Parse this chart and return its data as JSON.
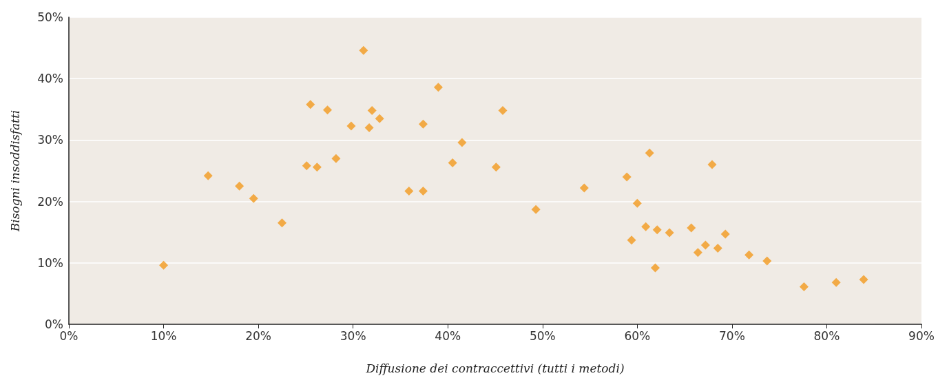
{
  "chart_data": {
    "type": "scatter",
    "xlabel": "Diffusione dei contraccettivi (tutti i metodi)",
    "ylabel": "Bisogni insoddisfatti",
    "x": [
      10.0,
      14.7,
      18.0,
      19.5,
      22.5,
      25.1,
      25.5,
      26.2,
      27.3,
      28.2,
      29.8,
      31.1,
      31.7,
      32.0,
      32.8,
      35.9,
      37.4,
      37.4,
      39.0,
      40.5,
      41.5,
      45.1,
      45.8,
      49.3,
      54.4,
      58.9,
      59.4,
      60.0,
      60.9,
      61.3,
      61.9,
      62.1,
      63.4,
      65.7,
      66.4,
      67.2,
      67.9,
      68.5,
      69.3,
      71.8,
      73.7,
      77.6,
      81.0,
      83.9
    ],
    "series": [
      {
        "color": "#f39a1e",
        "values": [
          9.6,
          24.2,
          22.5,
          20.5,
          16.5,
          25.8,
          35.8,
          25.6,
          34.9,
          27.0,
          32.3,
          44.6,
          32.0,
          34.8,
          33.5,
          21.7,
          32.6,
          21.7,
          38.6,
          26.3,
          29.6,
          25.6,
          34.8,
          18.7,
          22.2,
          24.0,
          13.7,
          19.7,
          15.9,
          27.9,
          9.2,
          15.4,
          14.9,
          15.7,
          11.7,
          12.9,
          26.0,
          12.4,
          14.7,
          11.3,
          10.3,
          6.1,
          6.8,
          7.3
        ]
      }
    ],
    "marker": "diamond",
    "grid": "y",
    "xlim": [
      0,
      90
    ],
    "xticks": [
      {
        "value": 0,
        "label": "0%"
      },
      {
        "value": 10,
        "label": "10%"
      },
      {
        "value": 20,
        "label": "20%"
      },
      {
        "value": 30,
        "label": "30%"
      },
      {
        "value": 40,
        "label": "40%"
      },
      {
        "value": 50,
        "label": "50%"
      },
      {
        "value": 60,
        "label": "60%"
      },
      {
        "value": 70,
        "label": "70%"
      },
      {
        "value": 80,
        "label": "80%"
      },
      {
        "value": 90,
        "label": "90%"
      }
    ],
    "ylim": [
      0,
      50
    ],
    "yticks": [
      {
        "value": 0,
        "label": "0%"
      },
      {
        "value": 10,
        "label": "10%"
      },
      {
        "value": 20,
        "label": "20%"
      },
      {
        "value": 30,
        "label": "30%"
      },
      {
        "value": 40,
        "label": "40%"
      },
      {
        "value": 50,
        "label": "50%"
      }
    ]
  }
}
